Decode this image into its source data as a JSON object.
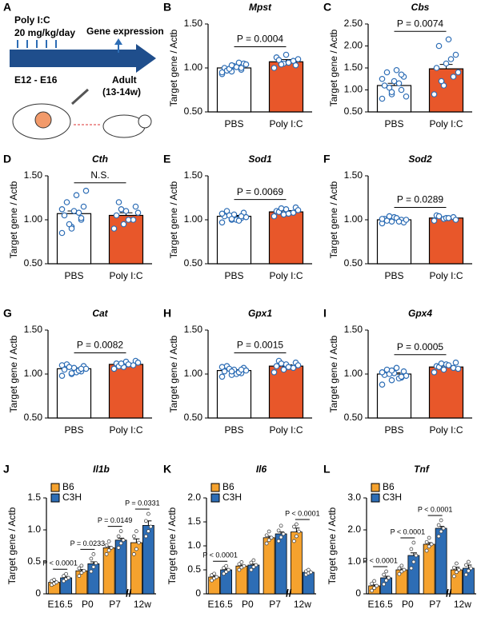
{
  "diagram": {
    "panel": "A",
    "dose_title": "Poly I:C",
    "dose": "20 mg/kg/day",
    "readout": "Gene expression",
    "window": "E12 - E16",
    "adult": "Adult",
    "adult_age": "(13-14w)"
  },
  "chart_data": [
    {
      "type": "bar",
      "panel": "B",
      "title": "Mpst",
      "ylabel": "Target gene / Actb",
      "categories": [
        "PBS",
        "Poly I:C"
      ],
      "values": [
        1.0,
        1.07
      ],
      "errors": [
        0.015,
        0.025
      ],
      "colors": [
        "#ffffff",
        "#e8572a"
      ],
      "points": [
        [
          0.93,
          0.96,
          0.98,
          1.0,
          1.02,
          1.05,
          0.97,
          1.01,
          1.04,
          0.99,
          1.06,
          0.95,
          1.03,
          1.0
        ],
        [
          1.0,
          1.05,
          1.08,
          1.12,
          1.15,
          1.03,
          1.09,
          1.06,
          1.1,
          1.04
        ]
      ],
      "annotation": "P = 0.0004",
      "ylim": [
        0.5,
        1.5
      ],
      "yticks": [
        {
          "value": 0.5,
          "label": "0.50"
        },
        {
          "value": 1.0,
          "label": "1.00"
        },
        {
          "value": 1.5,
          "label": "1.50"
        }
      ]
    },
    {
      "type": "bar",
      "panel": "C",
      "title": "Cbs",
      "ylabel": "Target gene / Actb",
      "categories": [
        "PBS",
        "Poly I:C"
      ],
      "values": [
        1.1,
        1.48
      ],
      "errors": [
        0.05,
        0.1
      ],
      "colors": [
        "#ffffff",
        "#e8572a"
      ],
      "points": [
        [
          0.8,
          0.9,
          1.0,
          1.1,
          1.2,
          1.3,
          1.4,
          1.45,
          0.85,
          1.05,
          1.15,
          1.25,
          0.95,
          1.35
        ],
        [
          0.9,
          1.1,
          1.3,
          1.5,
          1.6,
          1.8,
          2.0,
          2.15,
          1.4,
          1.2,
          1.7
        ]
      ],
      "annotation": "P = 0.0074",
      "ylim": [
        0.5,
        2.5
      ],
      "yticks": [
        {
          "value": 0.5,
          "label": "0.50"
        },
        {
          "value": 1.0,
          "label": "1.00"
        },
        {
          "value": 1.5,
          "label": "1.50"
        },
        {
          "value": 2.0,
          "label": "2.00"
        },
        {
          "value": 2.5,
          "label": "2.50"
        }
      ]
    },
    {
      "type": "bar",
      "panel": "D",
      "title": "Cth",
      "ylabel": "Target gene / Actb",
      "categories": [
        "PBS",
        "Poly I:C"
      ],
      "values": [
        1.07,
        1.05
      ],
      "errors": [
        0.03,
        0.03
      ],
      "colors": [
        "#ffffff",
        "#e8572a"
      ],
      "points": [
        [
          0.85,
          0.92,
          1.0,
          1.05,
          1.1,
          1.15,
          1.2,
          1.28,
          1.33,
          0.95,
          1.08,
          1.12,
          0.9,
          1.02
        ],
        [
          0.9,
          0.95,
          1.0,
          1.05,
          1.1,
          1.15,
          1.2,
          1.0,
          1.08,
          1.12
        ]
      ],
      "annotation": "N.S.",
      "ylim": [
        0.5,
        1.5
      ],
      "yticks": [
        {
          "value": 0.5,
          "label": "0.50"
        },
        {
          "value": 1.0,
          "label": "1.00"
        },
        {
          "value": 1.5,
          "label": "1.50"
        }
      ]
    },
    {
      "type": "bar",
      "panel": "E",
      "title": "Sod1",
      "ylabel": "Target gene / Actb",
      "categories": [
        "PBS",
        "Poly I:C"
      ],
      "values": [
        1.04,
        1.09
      ],
      "errors": [
        0.01,
        0.015
      ],
      "colors": [
        "#ffffff",
        "#e8572a"
      ],
      "points": [
        [
          0.97,
          1.0,
          1.02,
          1.04,
          1.06,
          1.08,
          1.1,
          1.0,
          1.03,
          1.05,
          0.99,
          1.07,
          1.01,
          1.04
        ],
        [
          1.04,
          1.06,
          1.08,
          1.1,
          1.12,
          1.14,
          1.09,
          1.07,
          1.11,
          1.13
        ]
      ],
      "annotation": "P = 0.0069",
      "ylim": [
        0.5,
        1.5
      ],
      "yticks": [
        {
          "value": 0.5,
          "label": "0.50"
        },
        {
          "value": 1.0,
          "label": "1.00"
        },
        {
          "value": 1.5,
          "label": "1.50"
        }
      ]
    },
    {
      "type": "bar",
      "panel": "F",
      "title": "Sod2",
      "ylabel": "Target gene / Actb",
      "categories": [
        "PBS",
        "Poly I:C"
      ],
      "values": [
        1.0,
        1.02
      ],
      "errors": [
        0.008,
        0.01
      ],
      "colors": [
        "#ffffff",
        "#e8572a"
      ],
      "points": [
        [
          0.96,
          0.98,
          1.0,
          1.01,
          1.03,
          0.97,
          0.99,
          1.02,
          1.0,
          1.04,
          0.98,
          1.01
        ],
        [
          0.99,
          1.01,
          1.03,
          1.05,
          1.02,
          1.0,
          1.04,
          1.02
        ]
      ],
      "annotation": "P = 0.0289",
      "ylim": [
        0.5,
        1.5
      ],
      "yticks": [
        {
          "value": 0.5,
          "label": "0.50"
        },
        {
          "value": 1.0,
          "label": "1.00"
        },
        {
          "value": 1.5,
          "label": "1.50"
        }
      ]
    },
    {
      "type": "bar",
      "panel": "G",
      "title": "Cat",
      "ylabel": "Target gene / Actb",
      "categories": [
        "PBS",
        "Poly I:C"
      ],
      "values": [
        1.06,
        1.11
      ],
      "errors": [
        0.01,
        0.012
      ],
      "colors": [
        "#ffffff",
        "#e8572a"
      ],
      "points": [
        [
          0.98,
          1.0,
          1.03,
          1.05,
          1.07,
          1.09,
          1.11,
          1.02,
          1.06,
          1.08,
          1.04,
          1.1,
          1.01,
          1.06
        ],
        [
          1.06,
          1.08,
          1.1,
          1.12,
          1.14,
          1.15,
          1.09,
          1.11,
          1.13,
          1.12
        ]
      ],
      "annotation": "P = 0.0082",
      "ylim": [
        0.5,
        1.5
      ],
      "yticks": [
        {
          "value": 0.5,
          "label": "0.50"
        },
        {
          "value": 1.0,
          "label": "1.00"
        },
        {
          "value": 1.5,
          "label": "1.50"
        }
      ]
    },
    {
      "type": "bar",
      "panel": "H",
      "title": "Gpx1",
      "ylabel": "Target gene / Actb",
      "categories": [
        "PBS",
        "Poly I:C"
      ],
      "values": [
        1.04,
        1.09
      ],
      "errors": [
        0.01,
        0.015
      ],
      "colors": [
        "#ffffff",
        "#e8572a"
      ],
      "points": [
        [
          0.97,
          0.99,
          1.01,
          1.03,
          1.05,
          1.07,
          1.09,
          1.0,
          1.04,
          1.06,
          1.02,
          1.08,
          1.03,
          1.05
        ],
        [
          1.02,
          1.05,
          1.07,
          1.09,
          1.11,
          1.13,
          1.15,
          1.08,
          1.1,
          1.12
        ]
      ],
      "annotation": "P = 0.0015",
      "ylim": [
        0.5,
        1.5
      ],
      "yticks": [
        {
          "value": 0.5,
          "label": "0.50"
        },
        {
          "value": 1.0,
          "label": "1.00"
        },
        {
          "value": 1.5,
          "label": "1.50"
        }
      ]
    },
    {
      "type": "bar",
      "panel": "I",
      "title": "Gpx4",
      "ylabel": "Target gene / Actb",
      "categories": [
        "PBS",
        "Poly I:C"
      ],
      "values": [
        1.0,
        1.08
      ],
      "errors": [
        0.015,
        0.015
      ],
      "colors": [
        "#ffffff",
        "#e8572a"
      ],
      "points": [
        [
          0.88,
          0.93,
          0.96,
          0.99,
          1.01,
          1.03,
          1.05,
          1.07,
          0.98,
          1.0,
          0.95,
          1.02,
          1.04,
          0.97
        ],
        [
          1.02,
          1.05,
          1.07,
          1.09,
          1.11,
          1.13,
          1.08,
          1.1,
          1.06,
          1.12
        ]
      ],
      "annotation": "P = 0.0005",
      "ylim": [
        0.5,
        1.5
      ],
      "yticks": [
        {
          "value": 0.5,
          "label": "0.50"
        },
        {
          "value": 1.0,
          "label": "1.00"
        },
        {
          "value": 1.5,
          "label": "1.50"
        }
      ]
    },
    {
      "type": "grouped_bar",
      "panel": "J",
      "title": "Il1b",
      "ylabel": "Target gene / Actb",
      "categories": [
        "E16.5",
        "P0",
        "P7",
        "12w"
      ],
      "series": [
        {
          "name": "B6",
          "color": "#f5a22e",
          "values": [
            0.18,
            0.36,
            0.72,
            0.8
          ],
          "errors": [
            0.01,
            0.02,
            0.02,
            0.06
          ],
          "points": [
            [
              0.14,
              0.16,
              0.18,
              0.2,
              0.22
            ],
            [
              0.28,
              0.33,
              0.36,
              0.4,
              0.44
            ],
            [
              0.62,
              0.68,
              0.72,
              0.76,
              0.82
            ],
            [
              0.62,
              0.7,
              0.8,
              0.9,
              0.98
            ]
          ]
        },
        {
          "name": "C3H",
          "color": "#2d6db5",
          "values": [
            0.25,
            0.47,
            0.84,
            1.07
          ],
          "errors": [
            0.015,
            0.03,
            0.03,
            0.07
          ],
          "points": [
            [
              0.2,
              0.23,
              0.25,
              0.28,
              0.31
            ],
            [
              0.35,
              0.42,
              0.48,
              0.55,
              0.62
            ],
            [
              0.72,
              0.79,
              0.84,
              0.9,
              0.98
            ],
            [
              0.9,
              0.98,
              1.05,
              1.14,
              1.25
            ]
          ]
        }
      ],
      "annotations": [
        {
          "text": "P < 0.0001",
          "category": 0
        },
        {
          "text": "P = 0.0233",
          "category": 1
        },
        {
          "text": "P = 0.0149",
          "category": 2
        },
        {
          "text": "P = 0.0331",
          "category": 3
        }
      ],
      "ylim": [
        0,
        1.5
      ],
      "yticks": [
        0,
        0.5,
        {
          "value": 1.0,
          "label": "1.0"
        },
        1.5
      ]
    },
    {
      "type": "grouped_bar",
      "panel": "K",
      "title": "Il6",
      "ylabel": "Target gene / Actb",
      "categories": [
        "E16.5",
        "P0",
        "P7",
        "12w"
      ],
      "series": [
        {
          "name": "B6",
          "color": "#f5a22e",
          "values": [
            0.35,
            0.58,
            1.17,
            1.29
          ],
          "errors": [
            0.02,
            0.02,
            0.03,
            0.08
          ],
          "points": [
            [
              0.28,
              0.32,
              0.35,
              0.39,
              0.42
            ],
            [
              0.5,
              0.55,
              0.58,
              0.62,
              0.66
            ],
            [
              1.05,
              1.12,
              1.17,
              1.22,
              1.3
            ],
            [
              1.1,
              1.2,
              1.3,
              1.4,
              1.45
            ]
          ]
        },
        {
          "name": "C3H",
          "color": "#2d6db5",
          "values": [
            0.5,
            0.6,
            1.25,
            0.45
          ],
          "errors": [
            0.02,
            0.02,
            0.04,
            0.02
          ],
          "points": [
            [
              0.42,
              0.46,
              0.5,
              0.54,
              0.58
            ],
            [
              0.5,
              0.56,
              0.6,
              0.65,
              0.7
            ],
            [
              1.1,
              1.18,
              1.25,
              1.32,
              1.42
            ],
            [
              0.4,
              0.43,
              0.45,
              0.47,
              0.5
            ]
          ]
        }
      ],
      "annotations": [
        {
          "text": "P < 0.0001",
          "category": 0
        },
        {
          "text": "P < 0.0001",
          "category": 3
        }
      ],
      "ylim": [
        0,
        2.0
      ],
      "yticks": [
        0,
        0.5,
        {
          "value": 1.0,
          "label": "1.0"
        },
        1.5,
        {
          "value": 2.0,
          "label": "2.0"
        }
      ]
    },
    {
      "type": "grouped_bar",
      "panel": "L",
      "title": "Tnf",
      "ylabel": "Target gene / Actb",
      "categories": [
        "E16.5",
        "P0",
        "P7",
        "12w"
      ],
      "series": [
        {
          "name": "B6",
          "color": "#f5a22e",
          "values": [
            0.25,
            0.75,
            1.55,
            0.75
          ],
          "errors": [
            0.03,
            0.03,
            0.05,
            0.08
          ],
          "points": [
            [
              0.1,
              0.18,
              0.25,
              0.32,
              0.4
            ],
            [
              0.62,
              0.7,
              0.75,
              0.8,
              0.88
            ],
            [
              1.35,
              1.48,
              1.55,
              1.62,
              1.75
            ],
            [
              0.55,
              0.68,
              0.75,
              0.82,
              0.95
            ]
          ]
        },
        {
          "name": "C3H",
          "color": "#2d6db5",
          "values": [
            0.5,
            1.2,
            2.05,
            0.8
          ],
          "errors": [
            0.05,
            0.08,
            0.06,
            0.1
          ],
          "points": [
            [
              0.3,
              0.42,
              0.5,
              0.6,
              0.7
            ],
            [
              0.8,
              1.0,
              1.2,
              1.4,
              1.6
            ],
            [
              1.8,
              1.95,
              2.05,
              2.15,
              2.3
            ],
            [
              0.6,
              0.72,
              0.8,
              0.9,
              1.0
            ]
          ]
        }
      ],
      "annotations": [
        {
          "text": "P < 0.0001",
          "category": 0
        },
        {
          "text": "P < 0.0001",
          "category": 1
        },
        {
          "text": "P < 0.0001",
          "category": 2
        }
      ],
      "ylim": [
        0,
        3.0
      ],
      "yticks": [
        0,
        {
          "value": 1.0,
          "label": "1.0"
        },
        {
          "value": 2.0,
          "label": "2.0"
        },
        {
          "value": 3.0,
          "label": "3.0"
        }
      ]
    }
  ]
}
